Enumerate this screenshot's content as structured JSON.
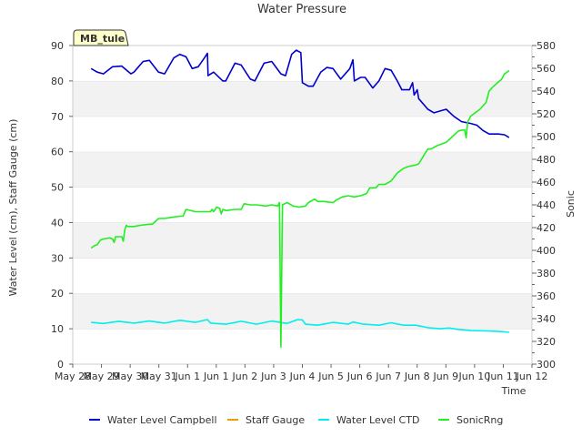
{
  "chart_data": {
    "type": "line",
    "title": "Water Pressure",
    "site_label": "MB_tule",
    "xlabel": "Time",
    "ylabel_left": "Water Level (cm), Staff Gauge (cm)",
    "ylabel_right": "Sonic",
    "x_ticks": [
      "May 28",
      "May 29",
      "May 30",
      "May 31",
      "Jun 1",
      "Jun 1",
      "Jun 2",
      "Jun 3",
      "Jun 4",
      "Jun 5",
      "Jun 6",
      "Jun 7",
      "Jun 8",
      "Jun 9",
      "Jun 10",
      "Jun 11",
      "Jun 12"
    ],
    "xlim": [
      0,
      15
    ],
    "y_left_ticks": [
      0,
      10,
      20,
      30,
      40,
      50,
      60,
      70,
      80,
      90
    ],
    "y_left_lim": [
      0,
      90
    ],
    "y_right_ticks": [
      300,
      320,
      340,
      360,
      380,
      400,
      420,
      440,
      460,
      480,
      500,
      520,
      540,
      560,
      580
    ],
    "y_right_lim": [
      300,
      580
    ],
    "grid": "horizontal bands",
    "legend_position": "bottom",
    "series": [
      {
        "name": "Water Level Campbell",
        "color": "#0000cc",
        "axis": "left",
        "points": [
          [
            0.6,
            83.5
          ],
          [
            0.8,
            82.5
          ],
          [
            1.0,
            82.0
          ],
          [
            1.3,
            84.0
          ],
          [
            1.6,
            84.2
          ],
          [
            1.9,
            82.0
          ],
          [
            2.0,
            82.5
          ],
          [
            2.3,
            85.5
          ],
          [
            2.5,
            85.8
          ],
          [
            2.8,
            82.5
          ],
          [
            3.0,
            82.0
          ],
          [
            3.3,
            86.5
          ],
          [
            3.5,
            87.5
          ],
          [
            3.7,
            86.8
          ],
          [
            3.9,
            83.5
          ],
          [
            4.1,
            84.0
          ],
          [
            4.3,
            86.5
          ],
          [
            4.4,
            87.8
          ],
          [
            4.42,
            81.5
          ],
          [
            4.6,
            82.5
          ],
          [
            4.9,
            80.0
          ],
          [
            5.0,
            80.0
          ],
          [
            5.3,
            85.0
          ],
          [
            5.5,
            84.5
          ],
          [
            5.8,
            80.5
          ],
          [
            5.95,
            80.0
          ],
          [
            6.25,
            85.0
          ],
          [
            6.5,
            85.5
          ],
          [
            6.8,
            82.0
          ],
          [
            6.95,
            81.5
          ],
          [
            7.15,
            87.5
          ],
          [
            7.3,
            88.7
          ],
          [
            7.45,
            88.0
          ],
          [
            7.5,
            79.5
          ],
          [
            7.7,
            78.5
          ],
          [
            7.85,
            78.5
          ],
          [
            8.1,
            82.5
          ],
          [
            8.3,
            83.8
          ],
          [
            8.5,
            83.5
          ],
          [
            8.75,
            80.5
          ],
          [
            9.05,
            83.5
          ],
          [
            9.15,
            86.0
          ],
          [
            9.2,
            80.0
          ],
          [
            9.4,
            81.0
          ],
          [
            9.55,
            81.0
          ],
          [
            9.8,
            78.0
          ],
          [
            10.0,
            80.0
          ],
          [
            10.2,
            83.5
          ],
          [
            10.4,
            83.0
          ],
          [
            10.6,
            80.0
          ],
          [
            10.75,
            77.5
          ],
          [
            11.0,
            77.5
          ],
          [
            11.1,
            79.5
          ],
          [
            11.15,
            76.0
          ],
          [
            11.25,
            77.5
          ],
          [
            11.3,
            75.0
          ],
          [
            11.6,
            72.0
          ],
          [
            11.8,
            71.0
          ],
          [
            12.0,
            71.5
          ],
          [
            12.2,
            72.0
          ],
          [
            12.45,
            70.0
          ],
          [
            12.7,
            68.5
          ],
          [
            13.0,
            68.0
          ],
          [
            13.2,
            67.5
          ],
          [
            13.4,
            66.0
          ],
          [
            13.6,
            65.0
          ],
          [
            13.9,
            65.0
          ],
          [
            14.1,
            64.8
          ],
          [
            14.25,
            64.0
          ]
        ]
      },
      {
        "name": "Staff Gauge",
        "color": "#e69f00",
        "axis": "left",
        "points": []
      },
      {
        "name": "Water Level CTD",
        "color": "#00eeee",
        "axis": "left",
        "points": [
          [
            0.6,
            11.8
          ],
          [
            1.0,
            11.5
          ],
          [
            1.5,
            12.1
          ],
          [
            2.0,
            11.6
          ],
          [
            2.5,
            12.2
          ],
          [
            3.0,
            11.6
          ],
          [
            3.5,
            12.4
          ],
          [
            4.0,
            11.8
          ],
          [
            4.4,
            12.6
          ],
          [
            4.5,
            11.6
          ],
          [
            5.0,
            11.3
          ],
          [
            5.5,
            12.1
          ],
          [
            6.0,
            11.3
          ],
          [
            6.5,
            12.2
          ],
          [
            7.0,
            11.5
          ],
          [
            7.35,
            12.6
          ],
          [
            7.5,
            12.5
          ],
          [
            7.6,
            11.3
          ],
          [
            8.0,
            11.0
          ],
          [
            8.5,
            11.8
          ],
          [
            9.0,
            11.3
          ],
          [
            9.15,
            11.9
          ],
          [
            9.5,
            11.3
          ],
          [
            10.0,
            11.0
          ],
          [
            10.4,
            11.7
          ],
          [
            10.8,
            11.0
          ],
          [
            11.2,
            11.0
          ],
          [
            11.6,
            10.3
          ],
          [
            12.0,
            10.0
          ],
          [
            12.3,
            10.2
          ],
          [
            12.6,
            9.8
          ],
          [
            13.0,
            9.5
          ],
          [
            13.5,
            9.4
          ],
          [
            14.0,
            9.2
          ],
          [
            14.25,
            9.0
          ]
        ]
      },
      {
        "name": "SonicRng",
        "color": "#22ee22",
        "axis": "right",
        "points": [
          [
            0.6,
            402
          ],
          [
            0.7,
            404
          ],
          [
            0.8,
            405
          ],
          [
            0.9,
            409
          ],
          [
            1.0,
            410
          ],
          [
            1.2,
            411
          ],
          [
            1.3,
            410
          ],
          [
            1.35,
            407
          ],
          [
            1.4,
            412
          ],
          [
            1.6,
            412
          ],
          [
            1.65,
            408
          ],
          [
            1.7,
            418
          ],
          [
            1.75,
            422
          ],
          [
            1.8,
            421
          ],
          [
            2.0,
            421
          ],
          [
            2.2,
            422
          ],
          [
            2.5,
            423
          ],
          [
            2.6,
            423
          ],
          [
            2.8,
            428
          ],
          [
            3.0,
            428
          ],
          [
            3.2,
            429
          ],
          [
            3.5,
            430
          ],
          [
            3.6,
            430
          ],
          [
            3.7,
            436
          ],
          [
            4.0,
            434
          ],
          [
            4.3,
            434
          ],
          [
            4.5,
            434
          ],
          [
            4.55,
            436
          ],
          [
            4.6,
            434
          ],
          [
            4.7,
            438
          ],
          [
            4.8,
            437
          ],
          [
            4.85,
            432
          ],
          [
            4.9,
            436
          ],
          [
            5.0,
            435
          ],
          [
            5.3,
            436
          ],
          [
            5.5,
            436
          ],
          [
            5.6,
            441
          ],
          [
            5.8,
            440
          ],
          [
            6.0,
            440
          ],
          [
            6.3,
            439
          ],
          [
            6.5,
            440
          ],
          [
            6.7,
            439
          ],
          [
            6.75,
            442
          ],
          [
            6.8,
            315
          ],
          [
            6.85,
            440
          ],
          [
            7.0,
            442
          ],
          [
            7.2,
            439
          ],
          [
            7.4,
            438
          ],
          [
            7.6,
            439
          ],
          [
            7.7,
            442
          ],
          [
            7.9,
            445
          ],
          [
            8.0,
            443
          ],
          [
            8.2,
            443
          ],
          [
            8.5,
            442
          ],
          [
            8.6,
            444
          ],
          [
            8.8,
            447
          ],
          [
            9.0,
            448
          ],
          [
            9.2,
            447
          ],
          [
            9.4,
            448
          ],
          [
            9.6,
            450
          ],
          [
            9.7,
            455
          ],
          [
            9.9,
            455
          ],
          [
            10.0,
            458
          ],
          [
            10.2,
            458
          ],
          [
            10.4,
            461
          ],
          [
            10.6,
            468
          ],
          [
            10.8,
            472
          ],
          [
            11.0,
            474
          ],
          [
            11.2,
            475
          ],
          [
            11.3,
            476
          ],
          [
            11.5,
            485
          ],
          [
            11.6,
            489
          ],
          [
            11.7,
            489
          ],
          [
            11.9,
            492
          ],
          [
            12.0,
            493
          ],
          [
            12.2,
            495
          ],
          [
            12.4,
            500
          ],
          [
            12.6,
            505
          ],
          [
            12.8,
            506
          ],
          [
            12.85,
            499
          ],
          [
            12.9,
            513
          ],
          [
            13.0,
            518
          ],
          [
            13.2,
            522
          ],
          [
            13.3,
            524
          ],
          [
            13.5,
            530
          ],
          [
            13.55,
            535
          ],
          [
            13.6,
            540
          ],
          [
            13.7,
            543
          ],
          [
            13.9,
            548
          ],
          [
            14.0,
            550
          ],
          [
            14.1,
            555
          ],
          [
            14.25,
            558
          ]
        ]
      }
    ]
  }
}
